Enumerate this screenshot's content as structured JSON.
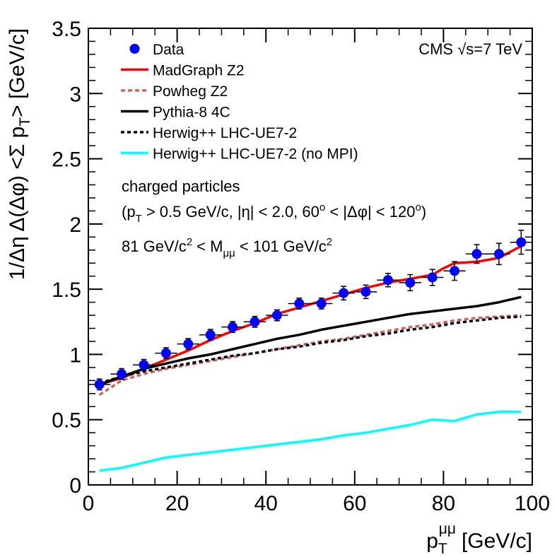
{
  "chart_data": {
    "type": "line",
    "title": "",
    "experiment_label": "CMS √s=7 TeV",
    "xlabel": "p_T^{μμ} [GeV/c]",
    "xlabel_parts": {
      "main": "p",
      "sub": "T",
      "sup": "μμ",
      "unit": "[GeV/c]"
    },
    "ylabel": "1/Δη Δ(Δφ) <Σ p_T> [GeV/c]",
    "ylabel_parts": {
      "pre": "1/Δη Δ(Δφ) <Σ p",
      "sub": "T",
      "post": "> [GeV/c]"
    },
    "xlim": [
      0,
      100
    ],
    "ylim": [
      0,
      3.5
    ],
    "x_ticks": [
      0,
      20,
      40,
      60,
      80,
      100
    ],
    "y_ticks": [
      0,
      0.5,
      1,
      1.5,
      2,
      2.5,
      3,
      3.5
    ],
    "x_tick_labels": [
      "0",
      "20",
      "40",
      "60",
      "80",
      "100"
    ],
    "y_tick_labels": [
      "0",
      "0.5",
      "1",
      "1.5",
      "2",
      "2.5",
      "3",
      "3.5"
    ],
    "annotations": {
      "line1": "charged particles",
      "line2": {
        "a": "(p",
        "a_sub": "T",
        "b": " > 0.5 GeV/c, |η| < 2.0, 60",
        "b_sup": "o",
        "c": " < |Δφ| < 120",
        "c_sup": "o",
        "d": ")"
      },
      "line3": {
        "a": "81 GeV/c",
        "a_sup": "2",
        "b": " < M",
        "b_sub": "μμ",
        "c": " < 101 GeV/c",
        "c_sup": "2"
      }
    },
    "legend_position": "top-left",
    "series": [
      {
        "name": "Data",
        "kind": "points",
        "color": "#0000ff",
        "x": [
          2.5,
          7.5,
          12.5,
          17.5,
          22.5,
          27.5,
          32.5,
          37.5,
          42.5,
          47.5,
          52.5,
          57.5,
          62.5,
          67.5,
          72.5,
          77.5,
          82.5,
          87.5,
          92.5,
          97.5
        ],
        "y": [
          0.77,
          0.85,
          0.92,
          1.01,
          1.08,
          1.15,
          1.21,
          1.25,
          1.3,
          1.39,
          1.39,
          1.47,
          1.48,
          1.57,
          1.55,
          1.59,
          1.64,
          1.77,
          1.77,
          1.86
        ],
        "err": [
          0.02,
          0.02,
          0.02,
          0.02,
          0.02,
          0.02,
          0.02,
          0.02,
          0.02,
          0.02,
          0.02,
          0.03,
          0.03,
          0.03,
          0.04,
          0.04,
          0.05,
          0.05,
          0.06,
          0.07
        ],
        "xerr": 2.5
      },
      {
        "name": "MadGraph Z2",
        "kind": "line",
        "style": "solid",
        "color": "#ff0000",
        "x": [
          2.5,
          7.5,
          12.5,
          17.5,
          22.5,
          27.5,
          32.5,
          37.5,
          42.5,
          47.5,
          52.5,
          57.5,
          62.5,
          67.5,
          72.5,
          77.5,
          80,
          82.5,
          87.5,
          92.5,
          97.5
        ],
        "y": [
          0.77,
          0.82,
          0.89,
          0.96,
          1.03,
          1.11,
          1.18,
          1.24,
          1.31,
          1.36,
          1.41,
          1.46,
          1.51,
          1.55,
          1.58,
          1.61,
          1.66,
          1.7,
          1.71,
          1.74,
          1.83
        ]
      },
      {
        "name": "Powheg Z2",
        "kind": "line",
        "style": "dashed",
        "color": "#cc6666",
        "x": [
          2.5,
          7.5,
          12.5,
          17.5,
          22.5,
          27.5,
          32.5,
          37.5,
          42.5,
          47.5,
          52.5,
          57.5,
          62.5,
          67.5,
          72.5,
          77.5,
          82.5,
          87.5,
          92.5,
          97.5
        ],
        "y": [
          0.69,
          0.8,
          0.85,
          0.89,
          0.92,
          0.95,
          0.98,
          1.01,
          1.04,
          1.07,
          1.1,
          1.12,
          1.15,
          1.18,
          1.21,
          1.23,
          1.26,
          1.28,
          1.29,
          1.3
        ]
      },
      {
        "name": "Pythia-8 4C",
        "kind": "line",
        "style": "solid",
        "color": "#000000",
        "x": [
          2.5,
          7.5,
          12.5,
          17.5,
          22.5,
          27.5,
          32.5,
          37.5,
          42.5,
          47.5,
          52.5,
          57.5,
          62.5,
          67.5,
          72.5,
          77.5,
          82.5,
          87.5,
          92.5,
          97.5
        ],
        "y": [
          0.77,
          0.83,
          0.89,
          0.93,
          0.97,
          1.0,
          1.04,
          1.08,
          1.12,
          1.15,
          1.19,
          1.22,
          1.25,
          1.28,
          1.31,
          1.33,
          1.35,
          1.37,
          1.4,
          1.44
        ]
      },
      {
        "name": "Herwig++ LHC-UE7-2",
        "kind": "line",
        "style": "dotted",
        "color": "#000000",
        "x": [
          2.5,
          7.5,
          12.5,
          17.5,
          22.5,
          27.5,
          32.5,
          37.5,
          42.5,
          47.5,
          52.5,
          57.5,
          62.5,
          67.5,
          72.5,
          77.5,
          82.5,
          87.5,
          92.5,
          97.5
        ],
        "y": [
          0.78,
          0.83,
          0.87,
          0.9,
          0.93,
          0.96,
          0.99,
          1.01,
          1.04,
          1.06,
          1.09,
          1.11,
          1.14,
          1.16,
          1.19,
          1.21,
          1.24,
          1.26,
          1.28,
          1.29
        ]
      },
      {
        "name": "Herwig++ LHC-UE7-2 (no MPI)",
        "kind": "line",
        "style": "solid",
        "color": "#00ffff",
        "x": [
          2.5,
          7.5,
          12.5,
          17.5,
          22.5,
          27.5,
          32.5,
          37.5,
          42.5,
          47.5,
          52.5,
          57.5,
          62.5,
          67.5,
          72.5,
          77.5,
          82.5,
          87.5,
          92.5,
          97.5
        ],
        "y": [
          0.11,
          0.13,
          0.17,
          0.21,
          0.23,
          0.25,
          0.27,
          0.29,
          0.31,
          0.33,
          0.35,
          0.38,
          0.4,
          0.43,
          0.46,
          0.5,
          0.49,
          0.54,
          0.56,
          0.56
        ]
      }
    ]
  }
}
